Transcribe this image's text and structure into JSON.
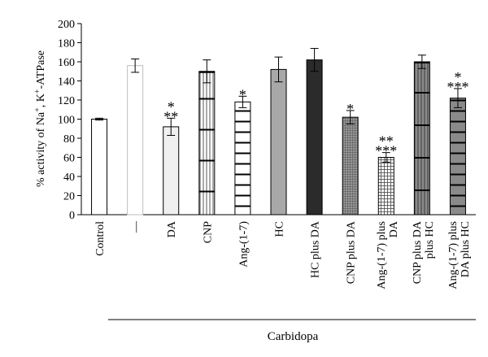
{
  "chart_data": {
    "type": "bar",
    "ylabel_parts": [
      "% activity of Na",
      "+",
      ", K",
      "+",
      "-ATPase"
    ],
    "ylim": [
      0,
      200
    ],
    "yticks": [
      "0",
      "20",
      "40",
      "60",
      "80",
      "100",
      "120",
      "140",
      "160",
      "180",
      "200"
    ],
    "categories": [
      {
        "label": [
          "Control"
        ]
      },
      {
        "label": [
          "—"
        ]
      },
      {
        "label": [
          "DA"
        ]
      },
      {
        "label": [
          "CNP"
        ]
      },
      {
        "label": [
          "Ang-(1-7)"
        ]
      },
      {
        "label": [
          "HC"
        ]
      },
      {
        "label": [
          "HC plus DA"
        ]
      },
      {
        "label": [
          "CNP plus DA"
        ]
      },
      {
        "label": [
          "Ang-(1-7) plus",
          "DA"
        ]
      },
      {
        "label": [
          "CNP plus DA",
          "plus HC"
        ]
      },
      {
        "label": [
          "Ang-(1-7) plus",
          "DA plus HC"
        ]
      }
    ],
    "values": [
      100,
      156,
      92,
      150,
      118,
      152,
      162,
      102,
      60,
      160,
      122
    ],
    "errors": [
      1,
      7,
      9,
      12,
      6,
      13,
      12,
      7,
      5,
      7,
      10
    ],
    "significance": [
      [],
      [],
      [
        "*",
        "**"
      ],
      [],
      [
        "*"
      ],
      [],
      [],
      [
        "*"
      ],
      [
        "**",
        "***"
      ],
      [],
      [
        "*",
        "***"
      ]
    ],
    "group_label": "Carbidopa"
  }
}
